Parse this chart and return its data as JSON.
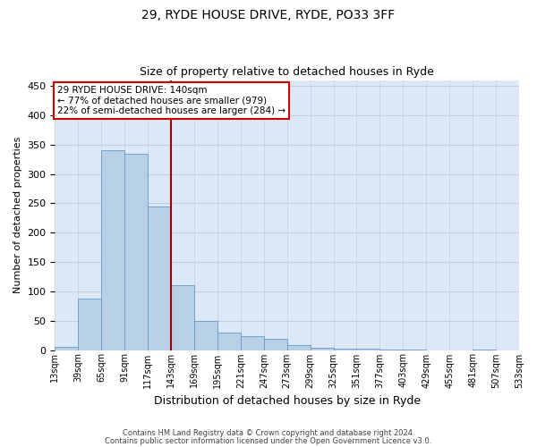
{
  "title1": "29, RYDE HOUSE DRIVE, RYDE, PO33 3FF",
  "title2": "Size of property relative to detached houses in Ryde",
  "xlabel": "Distribution of detached houses by size in Ryde",
  "ylabel": "Number of detached properties",
  "bar_values": [
    5,
    88,
    341,
    334,
    245,
    110,
    50,
    30,
    24,
    19,
    8,
    4,
    3,
    2,
    1,
    1,
    0,
    0,
    1,
    0
  ],
  "bin_labels": [
    "13sqm",
    "39sqm",
    "65sqm",
    "91sqm",
    "117sqm",
    "143sqm",
    "169sqm",
    "195sqm",
    "221sqm",
    "247sqm",
    "273sqm",
    "299sqm",
    "325sqm",
    "351sqm",
    "377sqm",
    "403sqm",
    "429sqm",
    "455sqm",
    "481sqm",
    "507sqm",
    "533sqm"
  ],
  "bar_color": "#b8cfe8",
  "bar_edge_color": "#6699cc",
  "vline_x": 4.5,
  "vline_color": "#990000",
  "annotation_text": "29 RYDE HOUSE DRIVE: 140sqm\n← 77% of detached houses are smaller (979)\n22% of semi-detached houses are larger (284) →",
  "annotation_box_color": "#ffffff",
  "annotation_box_edge": "#cc0000",
  "ylim": [
    0,
    460
  ],
  "yticks": [
    0,
    50,
    100,
    150,
    200,
    250,
    300,
    350,
    400,
    450
  ],
  "footer1": "Contains HM Land Registry data © Crown copyright and database right 2024.",
  "footer2": "Contains public sector information licensed under the Open Government Licence v3.0.",
  "plot_bg_color": "#dce8f5",
  "fig_bg_color": "#ffffff",
  "grid_color": "#c0cfe0",
  "title_fontsize": 10,
  "subtitle_fontsize": 9,
  "annotation_fontsize": 7.5
}
